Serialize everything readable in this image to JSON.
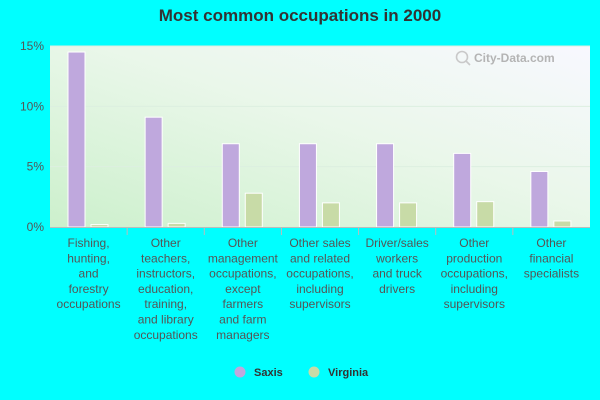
{
  "chart_data": {
    "type": "bar",
    "title": "Most common occupations in 2000",
    "categories": [
      [
        "Fishing,",
        "hunting,",
        "and",
        "forestry",
        "occupations"
      ],
      [
        "Other",
        "teachers,",
        "instructors,",
        "education,",
        "training,",
        "and library",
        "occupations"
      ],
      [
        "Other",
        "management",
        "occupations,",
        "except",
        "farmers",
        "and farm",
        "managers"
      ],
      [
        "Other sales",
        "and related",
        "occupations,",
        "including",
        "supervisors"
      ],
      [
        "Driver/sales",
        "workers",
        "and truck",
        "drivers"
      ],
      [
        "Other",
        "production",
        "occupations,",
        "including",
        "supervisors"
      ],
      [
        "Other",
        "financial",
        "specialists"
      ]
    ],
    "series": [
      {
        "name": "Saxis",
        "color": "#bfa8dd",
        "values": [
          14.5,
          9.1,
          6.9,
          6.9,
          6.9,
          6.1,
          4.6
        ]
      },
      {
        "name": "Virginia",
        "color": "#c8dba7",
        "values": [
          0.2,
          0.3,
          2.8,
          2.0,
          2.0,
          2.1,
          0.5
        ]
      }
    ],
    "ylim": [
      0,
      15
    ],
    "yticks": [
      0,
      5,
      10,
      15
    ],
    "ytick_labels": [
      "0%",
      "5%",
      "10%",
      "15%"
    ],
    "xlabel": "",
    "ylabel": "",
    "grid": true,
    "legend_position": "bottom"
  },
  "watermark": "City-Data.com"
}
